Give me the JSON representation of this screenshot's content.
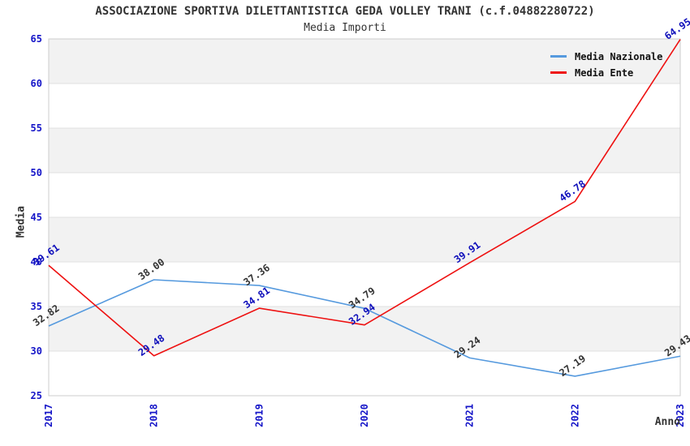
{
  "header": {
    "title": "ASSOCIAZIONE SPORTIVA DILETTANTISTICA GEDA VOLLEY TRANI (c.f.04882280722)",
    "subtitle": "Media Importi"
  },
  "axes": {
    "y_title": "Media",
    "x_title": "Anno"
  },
  "legend": {
    "items": [
      {
        "label": "Media Nazionale",
        "color": "#569ade"
      },
      {
        "label": "Media Ente",
        "color": "#ee1111"
      }
    ],
    "background": "#ffffff"
  },
  "colors": {
    "background": "#ffffff",
    "band": "#f2f2f2",
    "grid": "#e0e0e0",
    "plot_border": "#cccccc",
    "tick_label": "#1515c8",
    "title_text": "#333333"
  },
  "chart_data": {
    "type": "line",
    "title": "ASSOCIAZIONE SPORTIVA DILETTANTISTICA GEDA VOLLEY TRANI (c.f.04882280722)",
    "subtitle": "Media Importi",
    "xlabel": "Anno",
    "ylabel": "Media",
    "categories": [
      "2017",
      "2018",
      "2019",
      "2020",
      "2021",
      "2022",
      "2023"
    ],
    "series": [
      {
        "name": "Media Nazionale",
        "color": "#569ade",
        "label_color": "#333333",
        "values": [
          32.82,
          38.0,
          37.36,
          34.79,
          29.24,
          27.19,
          29.43
        ]
      },
      {
        "name": "Media Ente",
        "color": "#ee1111",
        "label_color": "#0f0fbb",
        "values": [
          39.61,
          29.48,
          34.81,
          32.94,
          39.91,
          46.78,
          64.95
        ]
      }
    ],
    "ylim": [
      25,
      65
    ],
    "ytick_step": 5,
    "grid": true,
    "band_shading": true,
    "legend_position": "top-right"
  }
}
